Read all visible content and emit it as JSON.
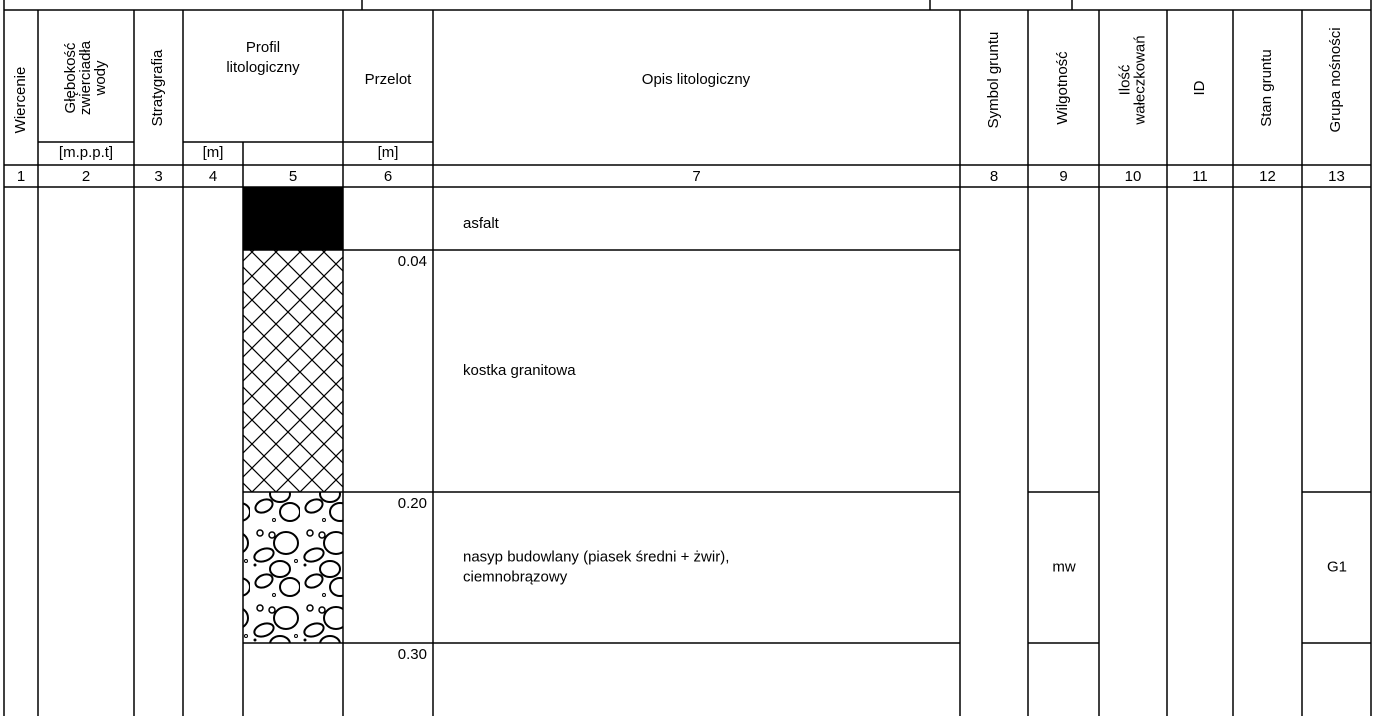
{
  "header": {
    "columns": [
      {
        "label": [
          "Wiercenie"
        ]
      },
      {
        "label": [
          "Głębokość",
          "zwierciadła",
          "wody"
        ],
        "unit": "[m.p.p.t]"
      },
      {
        "label": [
          "Stratygrafia"
        ]
      },
      {
        "label": [
          "Profil",
          "litologiczny"
        ],
        "unit": "[m]"
      },
      {
        "label": [
          "Przelot"
        ],
        "unit": "[m]"
      },
      {
        "label": [
          "Opis litologiczny"
        ]
      },
      {
        "label": [
          "Symbol gruntu"
        ]
      },
      {
        "label": [
          "Wilgotność"
        ]
      },
      {
        "label": [
          "Ilość",
          "wałeczkowań"
        ]
      },
      {
        "label": [
          "ID"
        ]
      },
      {
        "label": [
          "Stan gruntu"
        ]
      },
      {
        "label": [
          "Grupa nośności"
        ]
      }
    ],
    "numbers": [
      "1",
      "2",
      "3",
      "4",
      "5",
      "6",
      "7",
      "8",
      "9",
      "10",
      "11",
      "12",
      "13"
    ]
  },
  "layers": [
    {
      "description": [
        "asfalt"
      ]
    },
    {
      "depth": "0.04",
      "description": [
        "kostka granitowa"
      ]
    },
    {
      "depth": "0.20",
      "description": [
        "nasyp budowlany (piasek średni + żwir),",
        "ciemnobrązowy"
      ],
      "moisture": "mw",
      "bearing_group": "G1"
    },
    {
      "depth": "0.30"
    }
  ]
}
